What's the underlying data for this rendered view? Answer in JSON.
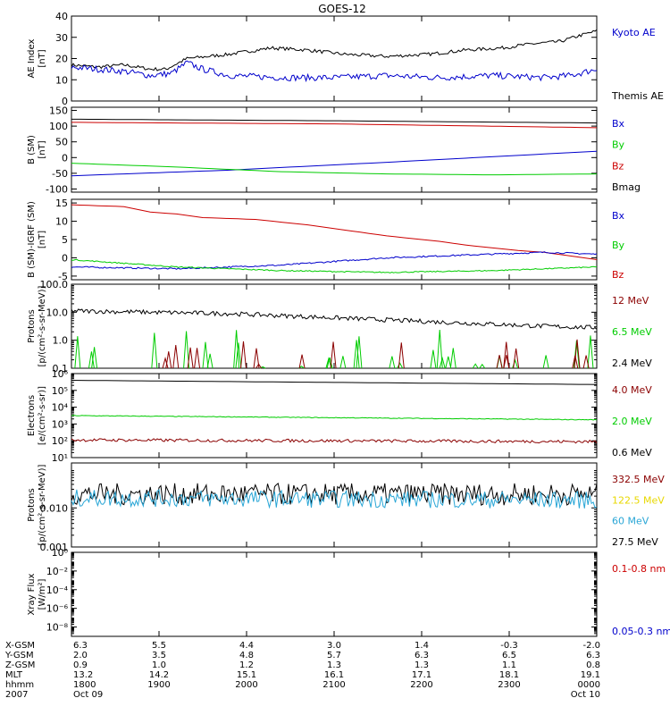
{
  "title": "GOES-12",
  "colors": {
    "black": "#000000",
    "blue": "#0000cc",
    "green": "#00cc00",
    "red": "#cc0000",
    "darkred": "#8b0000",
    "cyan": "#29a6d6",
    "yellow": "#e8d800"
  },
  "chart_data": [
    {
      "type": "line",
      "panel": "ae",
      "ylabel": [
        "AE Index",
        "[nT]"
      ],
      "ylim": [
        0,
        40
      ],
      "yticks": [
        "0",
        "10",
        "20",
        "30",
        "40"
      ],
      "legend": [
        {
          "label": "Kyoto AE",
          "color": "blue"
        },
        {
          "label": "Themis AE",
          "color": "black"
        }
      ],
      "series": [
        {
          "name": "Themis AE",
          "color": "black",
          "points": [
            [
              0,
              17
            ],
            [
              0.05,
              16
            ],
            [
              0.1,
              17
            ],
            [
              0.15,
              15
            ],
            [
              0.18,
              15
            ],
            [
              0.22,
              20
            ],
            [
              0.3,
              22
            ],
            [
              0.38,
              25
            ],
            [
              0.45,
              24
            ],
            [
              0.52,
              22
            ],
            [
              0.6,
              21
            ],
            [
              0.68,
              22
            ],
            [
              0.75,
              24
            ],
            [
              0.82,
              25
            ],
            [
              0.88,
              27
            ],
            [
              0.93,
              28
            ],
            [
              0.97,
              31
            ],
            [
              1,
              33
            ]
          ],
          "jitter": 0.8
        },
        {
          "name": "Kyoto AE",
          "color": "blue",
          "points": [
            [
              0,
              16
            ],
            [
              0.05,
              15
            ],
            [
              0.1,
              14
            ],
            [
              0.15,
              12
            ],
            [
              0.19,
              13
            ],
            [
              0.22,
              18
            ],
            [
              0.25,
              15
            ],
            [
              0.3,
              12
            ],
            [
              0.4,
              11
            ],
            [
              0.5,
              11
            ],
            [
              0.6,
              12
            ],
            [
              0.7,
              11
            ],
            [
              0.8,
              12
            ],
            [
              0.9,
              11
            ],
            [
              0.95,
              12
            ],
            [
              1,
              15
            ]
          ],
          "jitter": 1.5
        }
      ]
    },
    {
      "type": "line",
      "panel": "b",
      "ylabel": [
        "B (SM)",
        "[nT]"
      ],
      "ylim": [
        -110,
        160
      ],
      "yticks": [
        "-100",
        "-50",
        "0",
        "50",
        "100",
        "150"
      ],
      "ytick_values": [
        -100,
        -50,
        0,
        50,
        100,
        150
      ],
      "legend": [
        {
          "label": "Bx",
          "color": "blue"
        },
        {
          "label": "By",
          "color": "green"
        },
        {
          "label": "Bz",
          "color": "red"
        },
        {
          "label": "Bmag",
          "color": "black"
        }
      ],
      "series": [
        {
          "name": "Bmag",
          "color": "black",
          "points": [
            [
              0,
              122
            ],
            [
              0.5,
              117
            ],
            [
              1,
              110
            ]
          ],
          "jitter": 0
        },
        {
          "name": "Bz",
          "color": "red",
          "points": [
            [
              0,
              112
            ],
            [
              0.5,
              107
            ],
            [
              1,
              95
            ]
          ],
          "jitter": 0
        },
        {
          "name": "Bx",
          "color": "blue",
          "points": [
            [
              0,
              -58
            ],
            [
              0.3,
              -40
            ],
            [
              0.6,
              -15
            ],
            [
              1,
              20
            ]
          ],
          "jitter": 0
        },
        {
          "name": "By",
          "color": "green",
          "points": [
            [
              0,
              -18
            ],
            [
              0.2,
              -30
            ],
            [
              0.4,
              -45
            ],
            [
              0.6,
              -52
            ],
            [
              0.8,
              -55
            ],
            [
              1,
              -52
            ]
          ],
          "jitter": 0
        }
      ]
    },
    {
      "type": "line",
      "panel": "bdiff",
      "ylabel": [
        "B (SM)-IGRF (SM)",
        "[nT]"
      ],
      "ylim": [
        -6,
        16
      ],
      "yticks": [
        "-5",
        "0",
        "5",
        "10",
        "15"
      ],
      "ytick_values": [
        -5,
        0,
        5,
        10,
        15
      ],
      "legend": [
        {
          "label": "Bx",
          "color": "blue"
        },
        {
          "label": "By",
          "color": "green"
        },
        {
          "label": "Bz",
          "color": "red"
        }
      ],
      "series": [
        {
          "name": "Bz",
          "color": "red",
          "points": [
            [
              0,
              14.5
            ],
            [
              0.1,
              14
            ],
            [
              0.15,
              12.5
            ],
            [
              0.2,
              12
            ],
            [
              0.25,
              11
            ],
            [
              0.35,
              10.5
            ],
            [
              0.45,
              9
            ],
            [
              0.5,
              8
            ],
            [
              0.55,
              7
            ],
            [
              0.6,
              6
            ],
            [
              0.7,
              4.5
            ],
            [
              0.75,
              3.5
            ],
            [
              0.85,
              2
            ],
            [
              0.9,
              1.5
            ],
            [
              0.95,
              0.5
            ],
            [
              1,
              -0.5
            ]
          ],
          "jitter": 0
        },
        {
          "name": "Bx",
          "color": "blue",
          "points": [
            [
              0,
              -2.5
            ],
            [
              0.2,
              -3
            ],
            [
              0.4,
              -2
            ],
            [
              0.6,
              0
            ],
            [
              0.8,
              1
            ],
            [
              0.9,
              1.5
            ],
            [
              1,
              1
            ]
          ],
          "jitter": 0.2
        },
        {
          "name": "By",
          "color": "green",
          "points": [
            [
              0,
              -0.5
            ],
            [
              0.1,
              -1.5
            ],
            [
              0.2,
              -2.5
            ],
            [
              0.4,
              -3.5
            ],
            [
              0.6,
              -4
            ],
            [
              0.8,
              -3.5
            ],
            [
              1,
              -2.5
            ]
          ],
          "jitter": 0.15
        }
      ]
    },
    {
      "type": "line",
      "panel": "protons_low",
      "yscale": "log",
      "ylabel": [
        "Protons",
        "[p/(cm²-s-sr-MeV)]"
      ],
      "ylim_log": [
        -1,
        2
      ],
      "yticks": [
        "0.1",
        "1.0",
        "10.0",
        "100.0"
      ],
      "ytick_values": [
        -1,
        0,
        1,
        2
      ],
      "legend": [
        {
          "label": "12 MeV",
          "color": "darkred"
        },
        {
          "label": "6.5 MeV",
          "color": "green"
        },
        {
          "label": "2.4 MeV",
          "color": "black"
        }
      ],
      "series": [
        {
          "name": "2.4 MeV",
          "color": "black",
          "points": [
            [
              0,
              1.05
            ],
            [
              0.3,
              0.95
            ],
            [
              0.5,
              0.8
            ],
            [
              0.7,
              0.65
            ],
            [
              0.9,
              0.5
            ],
            [
              1,
              0.45
            ]
          ],
          "jitter": 0.08
        },
        {
          "name": "6.5 MeV",
          "color": "green",
          "style": "spikes",
          "base": -1,
          "count": 30,
          "max": 0.35
        },
        {
          "name": "12 MeV",
          "color": "darkred",
          "style": "spikes",
          "base": -1,
          "count": 18,
          "max": 0.1
        }
      ]
    },
    {
      "type": "line",
      "panel": "electrons",
      "yscale": "log",
      "ylabel": [
        "Electrons",
        "[e/(cm²-s-sr)]"
      ],
      "ylim_log": [
        1,
        6
      ],
      "yticks": [
        "10¹",
        "10²",
        "10³",
        "10⁴",
        "10⁵",
        "10⁶"
      ],
      "ytick_values": [
        1,
        2,
        3,
        4,
        5,
        6
      ],
      "legend": [
        {
          "label": "4.0 MeV",
          "color": "darkred"
        },
        {
          "label": "2.0 MeV",
          "color": "green"
        },
        {
          "label": "0.6 MeV",
          "color": "black"
        }
      ],
      "series": [
        {
          "name": "0.6 MeV",
          "color": "black",
          "points": [
            [
              0,
              5.6
            ],
            [
              1,
              5.35
            ]
          ],
          "jitter": 0
        },
        {
          "name": "2.0 MeV",
          "color": "green",
          "points": [
            [
              0,
              3.5
            ],
            [
              1,
              3.25
            ]
          ],
          "jitter": 0.02
        },
        {
          "name": "4.0 MeV",
          "color": "darkred",
          "points": [
            [
              0,
              2.05
            ],
            [
              1,
              1.95
            ]
          ],
          "jitter": 0.09
        }
      ]
    },
    {
      "type": "line",
      "panel": "protons_high",
      "yscale": "log",
      "ylabel": [
        "Protons",
        "[p/(cm²-s-sr-MeV)]"
      ],
      "ylim_log": [
        -3,
        -0.85
      ],
      "yticks": [
        "0.001",
        "0.010"
      ],
      "ytick_values": [
        -3,
        -2
      ],
      "legend": [
        {
          "label": "332.5 MeV",
          "color": "darkred"
        },
        {
          "label": "122.5 MeV",
          "color": "yellow"
        },
        {
          "label": "60 MeV",
          "color": "cyan"
        },
        {
          "label": "27.5 MeV",
          "color": "black"
        }
      ],
      "series": [
        {
          "name": "27.5 MeV",
          "color": "black",
          "points": [
            [
              0,
              -1.65
            ],
            [
              1,
              -1.65
            ]
          ],
          "jitter": 0.28
        },
        {
          "name": "60 MeV",
          "color": "cyan",
          "points": [
            [
              0,
              -1.75
            ],
            [
              1,
              -1.8
            ]
          ],
          "jitter": 0.22
        }
      ]
    },
    {
      "type": "line",
      "panel": "xray",
      "yscale": "log",
      "ylabel": [
        "Xray  Flux",
        "[W/m²]"
      ],
      "ylim_log": [
        -9,
        0
      ],
      "yticks": [
        "10⁻⁸",
        "10⁻⁶",
        "10⁻⁴",
        "10⁻²",
        "10⁰"
      ],
      "ytick_values": [
        -8,
        -6,
        -4,
        -2,
        0
      ],
      "legend": [
        {
          "label": "0.1-0.8 nm",
          "color": "red"
        },
        {
          "label": "0.05-0.3 nm",
          "color": "blue"
        }
      ],
      "series": []
    }
  ],
  "ephemeris": {
    "row_labels": [
      "X-GSM",
      "Y-GSM",
      "Z-GSM",
      "MLT",
      "hhmm",
      "2007"
    ],
    "columns": [
      {
        "values": [
          "6.3",
          "2.0",
          "0.9",
          "13.2",
          "1800",
          "Oct 09"
        ]
      },
      {
        "values": [
          "5.5",
          "3.5",
          "1.0",
          "14.2",
          "1900",
          ""
        ]
      },
      {
        "values": [
          "4.4",
          "4.8",
          "1.2",
          "15.1",
          "2000",
          ""
        ]
      },
      {
        "values": [
          "3.0",
          "5.7",
          "1.3",
          "16.1",
          "2100",
          ""
        ]
      },
      {
        "values": [
          "1.4",
          "6.3",
          "1.3",
          "17.1",
          "2200",
          ""
        ]
      },
      {
        "values": [
          "-0.3",
          "6.5",
          "1.1",
          "18.1",
          "2300",
          ""
        ]
      },
      {
        "values": [
          "-2.0",
          "6.3",
          "0.8",
          "19.1",
          "0000",
          "Oct 10"
        ]
      }
    ]
  }
}
